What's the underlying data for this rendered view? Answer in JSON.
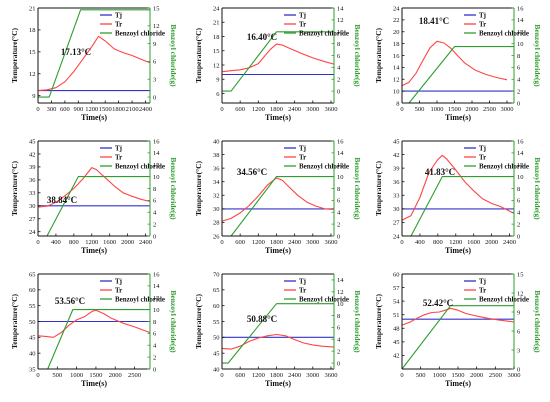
{
  "colors": {
    "tj": "#3333cc",
    "tr": "#ff4444",
    "benzoyl": "#2e9e2e",
    "axis": "#111111"
  },
  "common": {
    "xlabel": "Time(s)",
    "ylabel_left": "Temperature(°C)",
    "ylabel_right": "Benzoyl chloride(g)",
    "legend": [
      "Tj",
      "Tr",
      "Benzoyl chloride"
    ]
  },
  "chart_data": [
    {
      "type": "line",
      "peak_label": "17.13°C",
      "xlim": [
        0,
        2500
      ],
      "xticks": [
        0,
        300,
        600,
        900,
        1200,
        1500,
        1800,
        2100,
        2400
      ],
      "ylim": [
        8,
        21
      ],
      "yticks": [
        9,
        12,
        15,
        18,
        21
      ],
      "y2lim": [
        -1,
        15
      ],
      "y2ticks": [
        0,
        3,
        6,
        9,
        12,
        15
      ],
      "series": [
        {
          "name": "Tj",
          "axis": "left",
          "x": [
            0,
            2500
          ],
          "y": [
            9.7,
            9.7
          ]
        },
        {
          "name": "Tr",
          "axis": "left",
          "x": [
            0,
            200,
            400,
            600,
            800,
            1000,
            1200,
            1350,
            1500,
            1700,
            1900,
            2100,
            2300,
            2500
          ],
          "y": [
            9.7,
            9.8,
            10.1,
            10.9,
            12.3,
            14.0,
            15.7,
            17.13,
            16.5,
            15.4,
            14.9,
            14.5,
            14.0,
            13.5
          ]
        },
        {
          "name": "Benzoyl chloride",
          "axis": "right",
          "x": [
            0,
            200,
            250,
            950,
            2500
          ],
          "y": [
            0,
            0,
            0,
            14.7,
            14.7
          ]
        }
      ]
    },
    {
      "type": "line",
      "peak_label": "16.40°C",
      "xlim": [
        0,
        3700
      ],
      "xticks": [
        0,
        600,
        1200,
        1800,
        2400,
        3000,
        3600
      ],
      "ylim": [
        4,
        24
      ],
      "yticks": [
        6,
        9,
        12,
        15,
        18,
        21,
        24
      ],
      "y2lim": [
        -2,
        14
      ],
      "y2ticks": [
        0,
        2,
        4,
        6,
        8,
        10,
        12,
        14
      ],
      "series": [
        {
          "name": "Tj",
          "axis": "left",
          "x": [
            0,
            3700
          ],
          "y": [
            10.0,
            10.0
          ]
        },
        {
          "name": "Tr",
          "axis": "left",
          "x": [
            0,
            300,
            600,
            900,
            1200,
            1400,
            1600,
            1800,
            2000,
            2200,
            2600,
            3000,
            3400,
            3700
          ],
          "y": [
            10.6,
            10.8,
            11.0,
            11.4,
            12.3,
            13.8,
            15.3,
            16.4,
            16.2,
            15.6,
            14.5,
            13.5,
            12.7,
            12.2
          ]
        },
        {
          "name": "Benzoyl chloride",
          "axis": "right",
          "x": [
            0,
            300,
            1800,
            3700
          ],
          "y": [
            0,
            0,
            10.0,
            10.0
          ]
        }
      ]
    },
    {
      "type": "line",
      "peak_label": "18.41°C",
      "xlim": [
        0,
        3200
      ],
      "xticks": [
        0,
        500,
        1000,
        1500,
        2000,
        2500,
        3000
      ],
      "ylim": [
        8,
        24
      ],
      "yticks": [
        8,
        10,
        12,
        14,
        16,
        18,
        20,
        22,
        24
      ],
      "y2lim": [
        0,
        16
      ],
      "y2ticks": [
        0,
        2,
        4,
        6,
        8,
        10,
        12,
        14,
        16
      ],
      "series": [
        {
          "name": "Tj",
          "axis": "left",
          "x": [
            0,
            3200
          ],
          "y": [
            10.0,
            10.0
          ]
        },
        {
          "name": "Tr",
          "axis": "left",
          "x": [
            0,
            200,
            400,
            600,
            800,
            1000,
            1200,
            1400,
            1600,
            1800,
            2100,
            2400,
            2700,
            3000
          ],
          "y": [
            10.9,
            11.5,
            13.0,
            15.2,
            17.3,
            18.4,
            18.1,
            17.2,
            15.9,
            14.7,
            13.5,
            12.8,
            12.3,
            11.9
          ]
        },
        {
          "name": "Benzoyl chloride",
          "axis": "right",
          "x": [
            0,
            200,
            1500,
            3200
          ],
          "y": [
            0,
            0,
            9.5,
            9.5
          ]
        }
      ]
    },
    {
      "type": "line",
      "peak_label": "38.84°C",
      "xlim": [
        0,
        2500
      ],
      "xticks": [
        0,
        400,
        800,
        1200,
        1600,
        2000,
        2400
      ],
      "ylim": [
        23,
        45
      ],
      "yticks": [
        24,
        27,
        30,
        33,
        36,
        39,
        42,
        45
      ],
      "y2lim": [
        0,
        16
      ],
      "y2ticks": [
        0,
        2,
        4,
        6,
        8,
        10,
        12,
        14,
        16
      ],
      "series": [
        {
          "name": "Tj",
          "axis": "left",
          "x": [
            0,
            2500
          ],
          "y": [
            30.0,
            30.0
          ]
        },
        {
          "name": "Tr",
          "axis": "left",
          "x": [
            0,
            200,
            400,
            600,
            800,
            1000,
            1200,
            1300,
            1500,
            1700,
            1900,
            2100,
            2300,
            2500
          ],
          "y": [
            29.7,
            29.9,
            30.8,
            32.3,
            34.0,
            36.2,
            38.84,
            38.4,
            36.5,
            34.6,
            33.0,
            32.2,
            31.5,
            31.0
          ]
        },
        {
          "name": "Benzoyl chloride",
          "axis": "right",
          "x": [
            0,
            200,
            900,
            2500
          ],
          "y": [
            0,
            0,
            10.0,
            10.0
          ]
        }
      ]
    },
    {
      "type": "line",
      "peak_label": "34.56°C",
      "xlim": [
        0,
        3700
      ],
      "xticks": [
        0,
        600,
        1200,
        1800,
        2400,
        3000,
        3600
      ],
      "ylim": [
        26,
        40
      ],
      "yticks": [
        26,
        28,
        30,
        32,
        34,
        36,
        38,
        40
      ],
      "y2lim": [
        0,
        16
      ],
      "y2ticks": [
        0,
        2,
        4,
        6,
        8,
        10,
        12,
        14,
        16
      ],
      "series": [
        {
          "name": "Tj",
          "axis": "left",
          "x": [
            0,
            3700
          ],
          "y": [
            30.0,
            30.0
          ]
        },
        {
          "name": "Tr",
          "axis": "left",
          "x": [
            0,
            300,
            600,
            900,
            1200,
            1500,
            1800,
            2000,
            2200,
            2500,
            2800,
            3100,
            3400,
            3700
          ],
          "y": [
            28.2,
            28.6,
            29.4,
            30.5,
            31.9,
            33.5,
            34.56,
            34.2,
            33.3,
            32.0,
            31.0,
            30.4,
            30.0,
            29.9
          ]
        },
        {
          "name": "Benzoyl chloride",
          "axis": "right",
          "x": [
            0,
            300,
            1800,
            3700
          ],
          "y": [
            0,
            0,
            10.0,
            10.0
          ]
        }
      ]
    },
    {
      "type": "line",
      "peak_label": "41.83°C",
      "xlim": [
        0,
        2500
      ],
      "xticks": [
        0,
        400,
        800,
        1200,
        1600,
        2000,
        2400
      ],
      "ylim": [
        24,
        45
      ],
      "yticks": [
        24,
        27,
        30,
        33,
        36,
        39,
        42,
        45
      ],
      "y2lim": [
        0,
        16
      ],
      "y2ticks": [
        0,
        2,
        4,
        6,
        8,
        10,
        12,
        14,
        16
      ],
      "series": [
        {
          "name": "Tj",
          "axis": "left",
          "x": [
            0,
            2500
          ],
          "y": [
            30.0,
            30.0
          ]
        },
        {
          "name": "Tr",
          "axis": "left",
          "x": [
            0,
            200,
            400,
            600,
            800,
            900,
            1000,
            1200,
            1400,
            1600,
            1800,
            2000,
            2200,
            2500
          ],
          "y": [
            27.5,
            28.5,
            32.5,
            38.0,
            40.9,
            41.83,
            41.0,
            38.6,
            36.0,
            34.0,
            32.2,
            31.2,
            30.5,
            29.0
          ]
        },
        {
          "name": "Benzoyl chloride",
          "axis": "right",
          "x": [
            0,
            200,
            900,
            2500
          ],
          "y": [
            0,
            0,
            10.0,
            10.0
          ]
        }
      ]
    },
    {
      "type": "line",
      "peak_label": "53.56°C",
      "xlim": [
        0,
        2900
      ],
      "xticks": [
        0,
        500,
        1000,
        1500,
        2000,
        2500
      ],
      "ylim": [
        35,
        65
      ],
      "yticks": [
        35,
        40,
        45,
        50,
        55,
        60,
        65
      ],
      "y2lim": [
        0,
        16
      ],
      "y2ticks": [
        0,
        2,
        4,
        6,
        8,
        10,
        12,
        14,
        16
      ],
      "series": [
        {
          "name": "Tj",
          "axis": "left",
          "x": [
            0,
            2900
          ],
          "y": [
            50.0,
            50.0
          ]
        },
        {
          "name": "Tr",
          "axis": "left",
          "x": [
            0,
            200,
            400,
            600,
            800,
            1000,
            1200,
            1400,
            1500,
            1700,
            1900,
            2200,
            2500,
            2900
          ],
          "y": [
            45.5,
            45.3,
            45.0,
            46.5,
            48.8,
            50.5,
            51.5,
            53.2,
            53.56,
            52.5,
            51.0,
            49.5,
            48.3,
            46.5
          ]
        },
        {
          "name": "Benzoyl chloride",
          "axis": "right",
          "x": [
            0,
            250,
            900,
            2900
          ],
          "y": [
            0,
            0,
            10.0,
            10.0
          ]
        }
      ]
    },
    {
      "type": "line",
      "peak_label": "50.88°C",
      "xlim": [
        0,
        3700
      ],
      "xticks": [
        0,
        600,
        1200,
        1800,
        2400,
        3000,
        3600
      ],
      "ylim": [
        40,
        70
      ],
      "yticks": [
        40,
        45,
        50,
        55,
        60,
        65,
        70
      ],
      "y2lim": [
        -1,
        15
      ],
      "y2ticks": [
        0,
        2,
        4,
        6,
        8,
        10,
        12,
        14
      ],
      "series": [
        {
          "name": "Tj",
          "axis": "left",
          "x": [
            0,
            3700
          ],
          "y": [
            50.0,
            50.0
          ]
        },
        {
          "name": "Tr",
          "axis": "left",
          "x": [
            0,
            300,
            600,
            900,
            1200,
            1500,
            1800,
            2100,
            2400,
            2700,
            3000,
            3300,
            3700
          ],
          "y": [
            46.5,
            46.3,
            47.2,
            48.7,
            49.8,
            50.5,
            50.88,
            50.5,
            49.3,
            48.2,
            47.6,
            47.2,
            46.9
          ]
        },
        {
          "name": "Benzoyl chloride",
          "axis": "right",
          "x": [
            0,
            200,
            1800,
            3700
          ],
          "y": [
            0,
            0,
            10.0,
            10.0
          ]
        }
      ]
    },
    {
      "type": "line",
      "peak_label": "52.42°C",
      "xlim": [
        0,
        3000
      ],
      "xticks": [
        0,
        500,
        1000,
        1500,
        2000,
        2500,
        3000
      ],
      "ylim": [
        39,
        60
      ],
      "yticks": [
        42,
        45,
        48,
        51,
        54,
        57,
        60
      ],
      "y2lim": [
        0,
        15
      ],
      "y2ticks": [
        0,
        3,
        6,
        9,
        12,
        15
      ],
      "series": [
        {
          "name": "Tj",
          "axis": "left",
          "x": [
            0,
            3000
          ],
          "y": [
            50.0,
            50.0
          ]
        },
        {
          "name": "Tr",
          "axis": "left",
          "x": [
            0,
            200,
            400,
            600,
            800,
            1000,
            1200,
            1300,
            1500,
            1700,
            2000,
            2300,
            2600,
            3000
          ],
          "y": [
            48.7,
            49.3,
            50.2,
            51.0,
            51.5,
            51.6,
            52.1,
            52.42,
            52.0,
            51.3,
            50.7,
            50.2,
            49.8,
            49.4
          ]
        },
        {
          "name": "Benzoyl chloride",
          "axis": "right",
          "x": [
            0,
            1300,
            3000
          ],
          "y": [
            0,
            10.0,
            10.0
          ]
        }
      ]
    }
  ]
}
